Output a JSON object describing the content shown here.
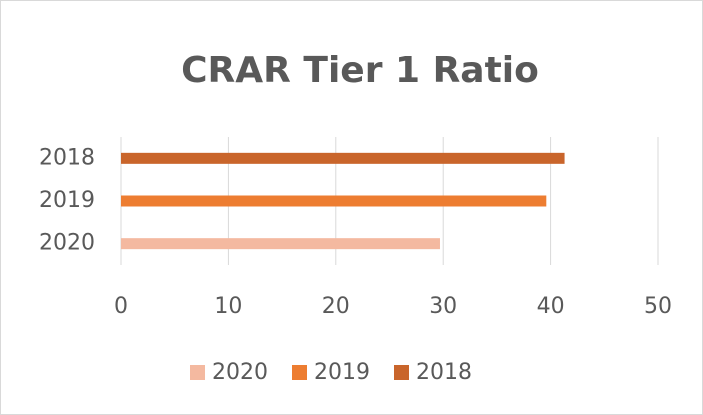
{
  "chart_data": {
    "type": "bar",
    "orientation": "horizontal",
    "title": "CRAR Tier 1 Ratio",
    "series": [
      {
        "name": "2020",
        "color": "#f4b9a0",
        "values": [
          29.7
        ]
      },
      {
        "name": "2019",
        "color": "#ed7d31",
        "values": [
          39.6
        ]
      },
      {
        "name": "2018",
        "color": "#c9652b",
        "values": [
          41.3
        ]
      }
    ],
    "xlim": [
      0,
      50
    ],
    "xticks": [
      0,
      10,
      20,
      30,
      40,
      50
    ],
    "grid": true,
    "legend": "bottom"
  }
}
